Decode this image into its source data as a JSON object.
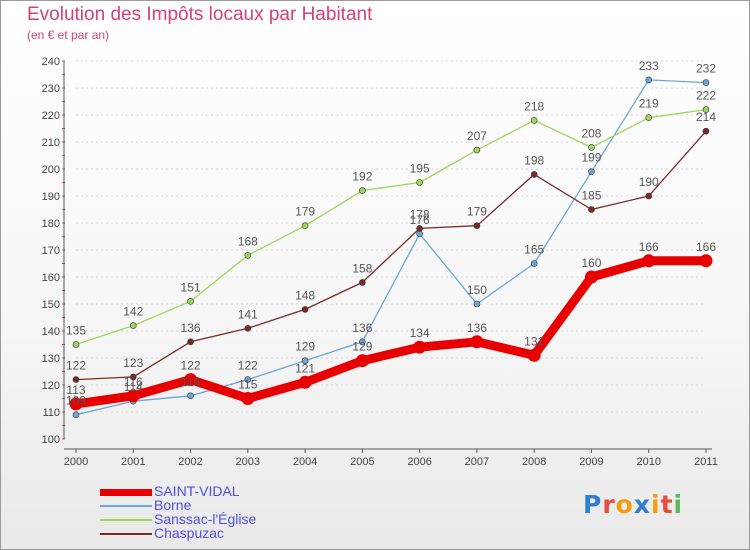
{
  "header": {
    "title": "Evolution des Impôts locaux par Habitant",
    "subtitle": "(en € et par an)"
  },
  "colors": {
    "title": "#d6407a",
    "legend_text": "#4f4fe0",
    "axis": "#555555",
    "grid": "#d8d8d8"
  },
  "logo": {
    "text": "Proxiti",
    "letter_colors": [
      "#2f7fd0",
      "#e74c3c",
      "#f39c12",
      "#2f7fd0",
      "#f39c12",
      "#e74c3c",
      "#5cb85c"
    ]
  },
  "chart_data": {
    "type": "line",
    "title": "Evolution des Impôts locaux par Habitant",
    "subtitle": "(en € et par an)",
    "xlabel": "",
    "ylabel": "",
    "x": [
      "2000",
      "2001",
      "2002",
      "2003",
      "2004",
      "2005",
      "2006",
      "2007",
      "2008",
      "2009",
      "2010",
      "2011"
    ],
    "ylim": [
      100,
      240
    ],
    "yticks": [
      100,
      110,
      120,
      130,
      140,
      150,
      160,
      170,
      180,
      190,
      200,
      210,
      220,
      230,
      240
    ],
    "grid": "horizontal dotted",
    "legend": "bottom-left",
    "series": [
      {
        "name": "SAINT-VIDAL",
        "color": "#e80000",
        "values": [
          113,
          116,
          122,
          115,
          121,
          129,
          134,
          136,
          131,
          160,
          166,
          166
        ],
        "labels": [
          "113",
          "116",
          "122",
          "115",
          "121",
          "129",
          "134",
          "136",
          "131",
          "160",
          "166",
          "166"
        ]
      },
      {
        "name": "Borne",
        "color": "#6aa6d8",
        "values": [
          109,
          114,
          116,
          122,
          129,
          136,
          176,
          150,
          165,
          199,
          233,
          232
        ],
        "labels": [
          "109",
          "114",
          "116",
          "122",
          "129",
          "136",
          "176",
          "150",
          "165",
          "199",
          "233",
          "232"
        ]
      },
      {
        "name": "Sanssac-l'Église",
        "color": "#9fd55a",
        "values": [
          135,
          142,
          151,
          168,
          179,
          192,
          195,
          207,
          218,
          208,
          219,
          222
        ],
        "labels": [
          "135",
          "142",
          "151",
          "168",
          "179",
          "192",
          "195",
          "207",
          "218",
          "208",
          "219",
          "222"
        ]
      },
      {
        "name": "Chaspuzac",
        "color": "#7a2a2a",
        "values": [
          122,
          123,
          136,
          141,
          148,
          158,
          178,
          179,
          198,
          185,
          190,
          214
        ],
        "labels": [
          "122",
          "123",
          "136",
          "141",
          "148",
          "158",
          "178",
          "179",
          "198",
          "185",
          "190",
          "214"
        ]
      }
    ]
  }
}
